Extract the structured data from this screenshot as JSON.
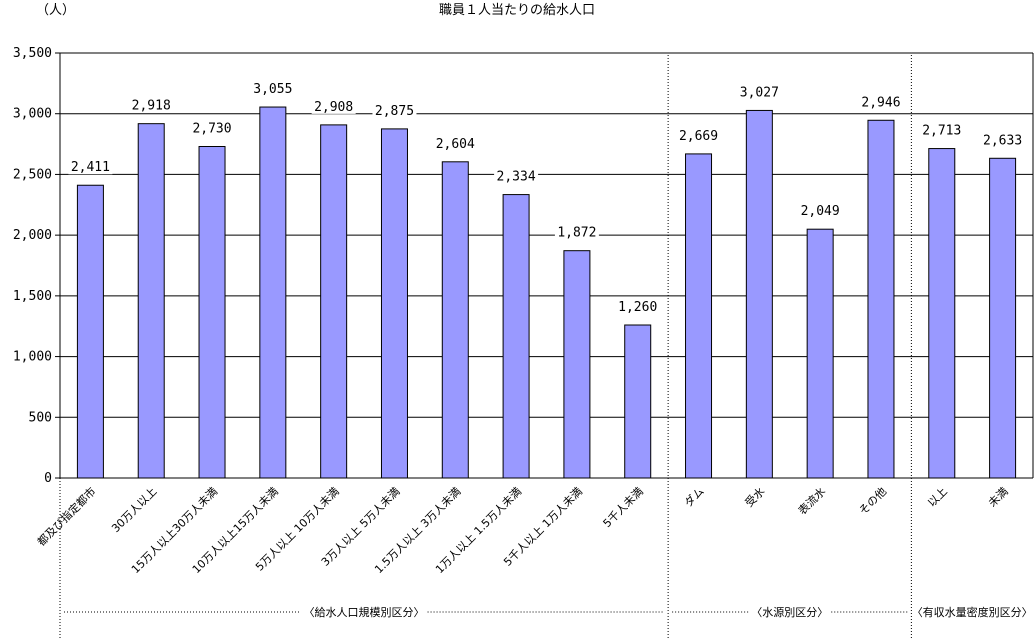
{
  "chart_data": {
    "type": "bar",
    "title": "職員１人当たりの給水人口",
    "unit_label": "（人）",
    "ylim": [
      0,
      3500
    ],
    "yticks": [
      0,
      500,
      1000,
      1500,
      2000,
      2500,
      3000,
      3500
    ],
    "ytick_labels": [
      "0",
      "500",
      "1,000",
      "1,500",
      "2,000",
      "2,500",
      "3,000",
      "3,500"
    ],
    "grid": true,
    "bar_color": "#9999ff",
    "categories": [
      "都及び指定都市",
      "30万人以上",
      "15万人以上30万人未満",
      "10万人以上15万人未満",
      "5万人以上 10万人未満",
      "3万人以上 5万人未満",
      "1.5万人以上 3万人未満",
      "1万人以上 1.5万人未満",
      "5千人以上 1万人未満",
      "5千人未満",
      "ダム",
      "受水",
      "表流水",
      "その他",
      "以上",
      "未満"
    ],
    "values": [
      2411,
      2918,
      2730,
      3055,
      2908,
      2875,
      2604,
      2334,
      1872,
      1260,
      2669,
      3027,
      2049,
      2946,
      2713,
      2633
    ],
    "value_labels": [
      "2,411",
      "2,918",
      "2,730",
      "3,055",
      "2,908",
      "2,875",
      "2,604",
      "2,334",
      "1,872",
      "1,260",
      "2,669",
      "3,027",
      "2,049",
      "2,946",
      "2,713",
      "2,633"
    ],
    "groups": [
      {
        "label": "〈給水人口規模別区分〉",
        "start": 0,
        "end": 9
      },
      {
        "label": "〈水源別区分〉",
        "start": 10,
        "end": 13
      },
      {
        "label": "〈有収水量密度別区分〉",
        "start": 14,
        "end": 15
      }
    ]
  }
}
